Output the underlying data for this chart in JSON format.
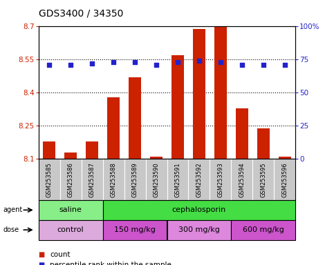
{
  "title": "GDS3400 / 34350",
  "samples": [
    "GSM253585",
    "GSM253586",
    "GSM253587",
    "GSM253588",
    "GSM253589",
    "GSM253590",
    "GSM253591",
    "GSM253592",
    "GSM253593",
    "GSM253594",
    "GSM253595",
    "GSM253596"
  ],
  "bar_values": [
    8.18,
    8.13,
    8.18,
    8.38,
    8.47,
    8.11,
    8.57,
    8.69,
    8.7,
    8.33,
    8.24,
    8.11
  ],
  "percentile_values": [
    71,
    71,
    72,
    73,
    73,
    71,
    73,
    74,
    73,
    71,
    71,
    71
  ],
  "bar_color": "#CC2200",
  "percentile_color": "#2222CC",
  "ylim_left": [
    8.1,
    8.7
  ],
  "ylim_right": [
    0,
    100
  ],
  "yticks_left": [
    8.1,
    8.25,
    8.4,
    8.55,
    8.7
  ],
  "yticks_right": [
    0,
    25,
    50,
    75,
    100
  ],
  "ytick_labels_left": [
    "8.1",
    "8.25",
    "8.4",
    "8.55",
    "8.7"
  ],
  "ytick_labels_right": [
    "0",
    "25",
    "50",
    "75",
    "100%"
  ],
  "hlines": [
    8.25,
    8.4,
    8.55
  ],
  "agent_groups": [
    {
      "label": "saline",
      "start": 0,
      "end": 3,
      "color": "#88EE88"
    },
    {
      "label": "cephalosporin",
      "start": 3,
      "end": 12,
      "color": "#44DD44"
    }
  ],
  "dose_groups": [
    {
      "label": "control",
      "start": 0,
      "end": 3,
      "color": "#DDAADD"
    },
    {
      "label": "150 mg/kg",
      "start": 3,
      "end": 6,
      "color": "#CC55CC"
    },
    {
      "label": "300 mg/kg",
      "start": 6,
      "end": 9,
      "color": "#DD88DD"
    },
    {
      "label": "600 mg/kg",
      "start": 9,
      "end": 12,
      "color": "#CC55CC"
    }
  ],
  "background_color": "#FFFFFF",
  "plot_bg_color": "#FFFFFF",
  "label_area_color": "#C8C8C8",
  "title_fontsize": 10,
  "tick_fontsize": 7.5,
  "sample_fontsize": 6,
  "row_fontsize": 8,
  "legend_fontsize": 7.5
}
